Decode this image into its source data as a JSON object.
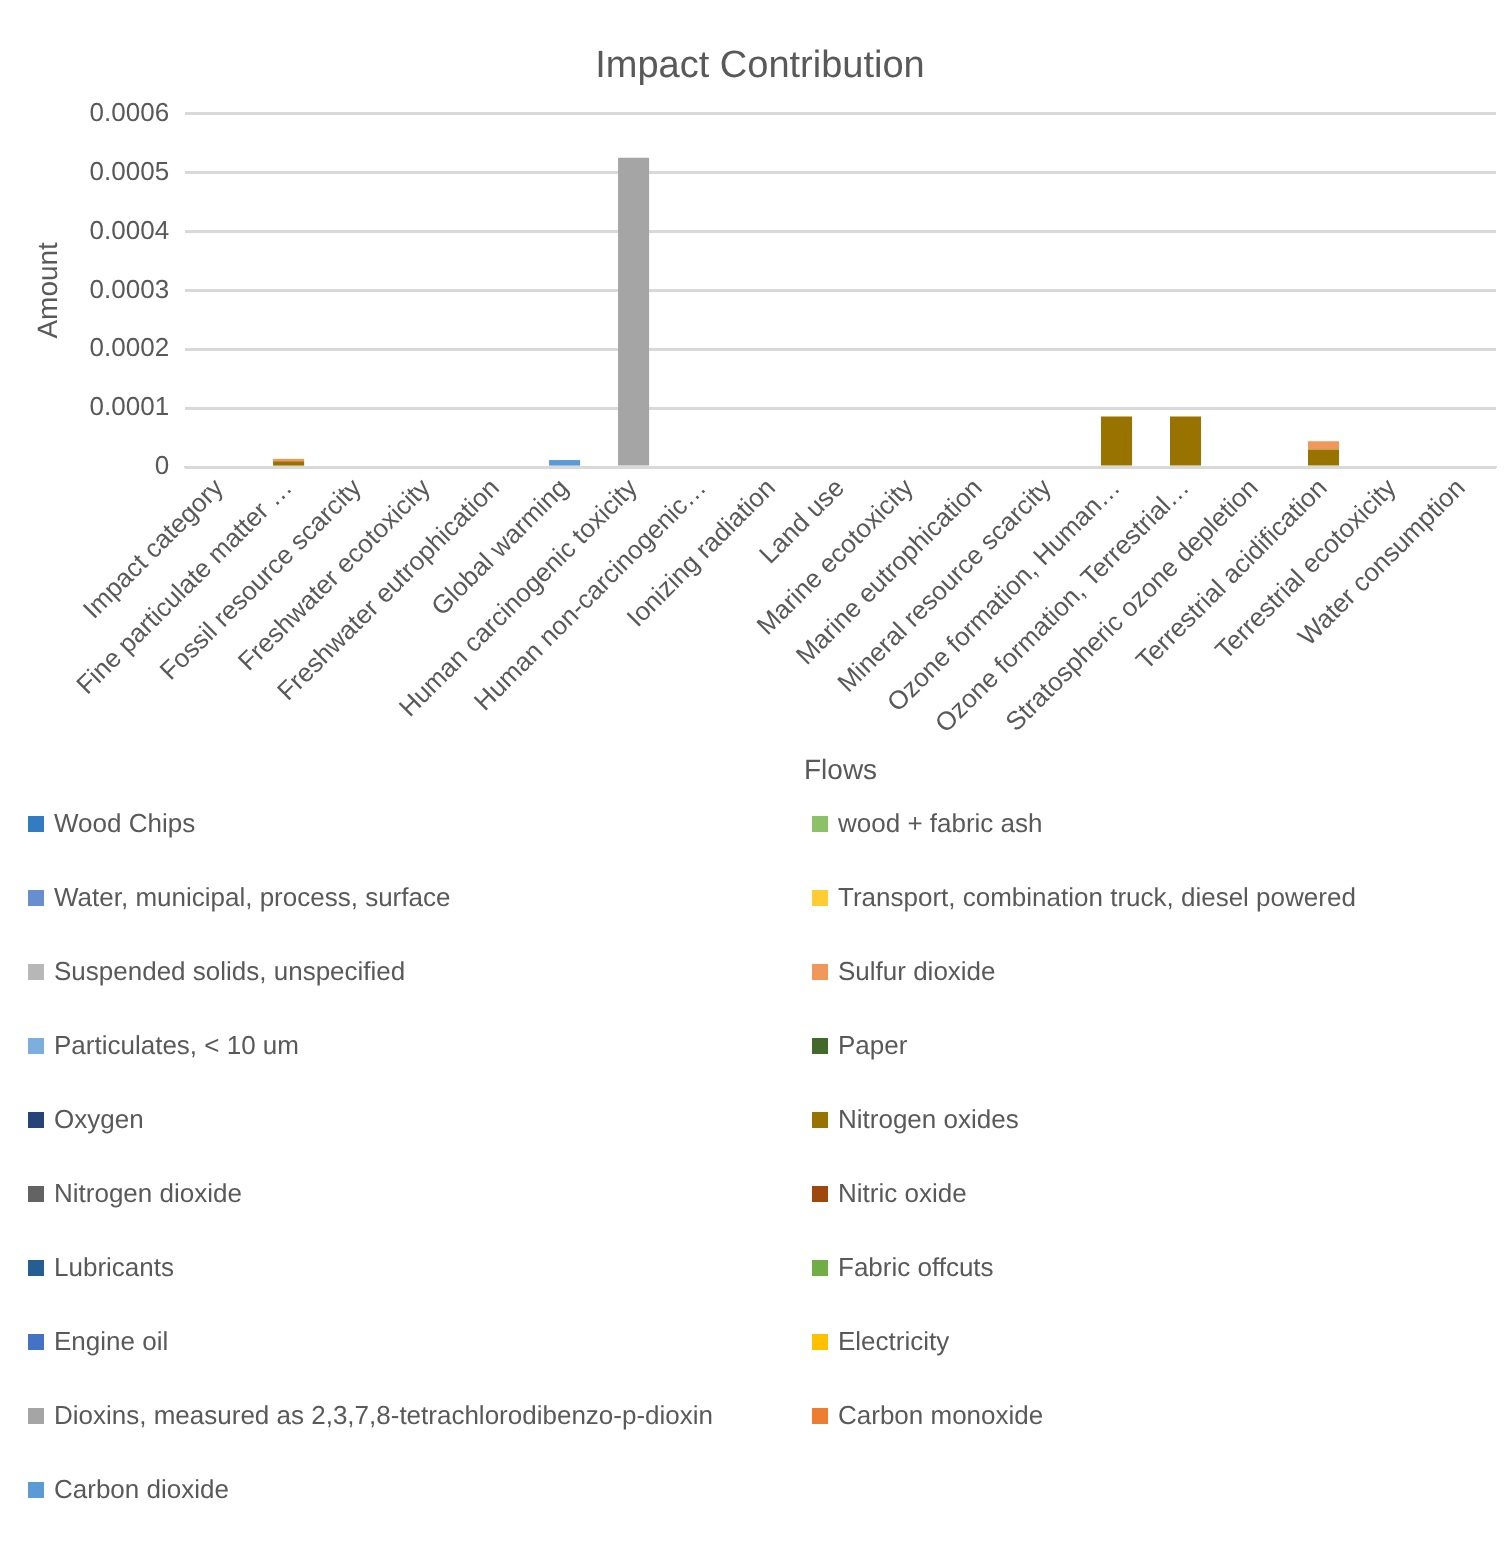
{
  "chart_data": {
    "type": "bar",
    "title": "Impact Contribution",
    "xlabel": "Flows",
    "ylabel": "Amount",
    "stacked": true,
    "grid": "y",
    "legend": "bottom",
    "categories": [
      "Impact category",
      "Fine particulate matter …",
      "Fossil resource scarcity",
      "Freshwater ecotoxicity",
      "Freshwater eutrophication",
      "Global warming",
      "Human carcinogenic toxicity",
      "Human non-carcinogenic…",
      "Ionizing radiation",
      "Land use",
      "Marine ecotoxicity",
      "Marine eutrophication",
      "Mineral resource scarcity",
      "Ozone formation, Human…",
      "Ozone formation, Terrestrial…",
      "Stratospheric ozone depletion",
      "Terrestrial acidification",
      "Terrestrial ecotoxicity",
      "Water consumption"
    ],
    "ylim": [
      0,
      0.0006
    ],
    "yticks": [
      0,
      0.0001,
      0.0002,
      0.0003,
      0.0004,
      0.0005,
      0.0006
    ],
    "series": [
      {
        "name": "Carbon dioxide",
        "color": "#5b9bd5",
        "values": [
          0,
          0,
          0,
          0,
          0,
          1.2e-05,
          0,
          0,
          0,
          0,
          0,
          0,
          0,
          0,
          0,
          0,
          0,
          0,
          0
        ]
      },
      {
        "name": "Carbon monoxide",
        "color": "#ed7d31",
        "values": [
          0,
          0,
          0,
          0,
          0,
          0,
          0,
          0,
          0,
          0,
          0,
          0,
          0,
          0,
          0,
          0,
          0,
          0,
          0
        ]
      },
      {
        "name": "Dioxins, measured as 2,3,7,8-tetrachlorodibenzo-p-dioxin",
        "color": "#a5a5a5",
        "values": [
          0,
          0,
          0,
          0,
          0,
          0,
          0.000525,
          0,
          0,
          0,
          0,
          0,
          0,
          0,
          0,
          0,
          0,
          0,
          0
        ]
      },
      {
        "name": "Electricity",
        "color": "#ffc000",
        "values": [
          0,
          0,
          0,
          0,
          0,
          0,
          0,
          0,
          0,
          0,
          0,
          0,
          0,
          0,
          0,
          0,
          0,
          0,
          0
        ]
      },
      {
        "name": "Engine oil",
        "color": "#4472c4",
        "values": [
          0,
          0,
          0,
          0,
          0,
          0,
          0,
          0,
          0,
          0,
          0,
          0,
          0,
          0,
          0,
          0,
          0,
          0,
          0
        ]
      },
      {
        "name": "Fabric offcuts",
        "color": "#70ad47",
        "values": [
          0,
          0,
          0,
          0,
          0,
          0,
          0,
          0,
          0,
          0,
          0,
          0,
          0,
          0,
          0,
          0,
          0,
          0,
          0
        ]
      },
      {
        "name": "Lubricants",
        "color": "#255e91",
        "values": [
          0,
          0,
          0,
          0,
          0,
          0,
          0,
          0,
          0,
          0,
          0,
          0,
          0,
          0,
          0,
          0,
          0,
          0,
          0
        ]
      },
      {
        "name": "Nitric oxide",
        "color": "#9e480e",
        "values": [
          0,
          0,
          0,
          0,
          0,
          0,
          0,
          0,
          0,
          0,
          0,
          0,
          0,
          0,
          0,
          0,
          0,
          0,
          0
        ]
      },
      {
        "name": "Nitrogen dioxide",
        "color": "#636363",
        "values": [
          0,
          0,
          0,
          0,
          0,
          0,
          0,
          0,
          0,
          0,
          0,
          0,
          0,
          0,
          0,
          0,
          0,
          0,
          0
        ]
      },
      {
        "name": "Nitrogen oxides",
        "color": "#997300",
        "values": [
          0,
          1e-05,
          0,
          0,
          0,
          0,
          0,
          0,
          0,
          0,
          0,
          0,
          0,
          8.6e-05,
          8.6e-05,
          0,
          3e-05,
          0,
          0
        ]
      },
      {
        "name": "Oxygen",
        "color": "#264478",
        "values": [
          0,
          0,
          0,
          0,
          0,
          0,
          0,
          0,
          0,
          0,
          0,
          0,
          0,
          0,
          0,
          0,
          0,
          0,
          0
        ]
      },
      {
        "name": "Paper",
        "color": "#43682b",
        "values": [
          0,
          0,
          0,
          0,
          0,
          0,
          0,
          0,
          0,
          0,
          0,
          0,
          0,
          0,
          0,
          0,
          0,
          0,
          0
        ]
      },
      {
        "name": "Particulates, < 10 um",
        "color": "#7cafdd",
        "values": [
          0,
          0,
          0,
          0,
          0,
          0,
          0,
          0,
          0,
          0,
          0,
          0,
          0,
          0,
          0,
          0,
          0,
          0,
          0
        ]
      },
      {
        "name": "Sulfur dioxide",
        "color": "#f1975a",
        "values": [
          0,
          4e-06,
          0,
          0,
          0,
          0,
          0,
          0,
          0,
          0,
          0,
          0,
          0,
          0,
          0,
          0,
          1.4e-05,
          0,
          0
        ]
      },
      {
        "name": "Suspended solids, unspecified",
        "color": "#b7b7b7",
        "values": [
          0,
          0,
          0,
          0,
          0,
          0,
          0,
          0,
          0,
          0,
          0,
          0,
          0,
          0,
          0,
          0,
          0,
          0,
          0
        ]
      },
      {
        "name": "Transport, combination truck, diesel powered",
        "color": "#ffcd33",
        "values": [
          0,
          0,
          0,
          0,
          0,
          0,
          0,
          0,
          0,
          0,
          0,
          0,
          0,
          0,
          0,
          0,
          0,
          0,
          0
        ]
      },
      {
        "name": "Water, municipal, process, surface",
        "color": "#698ed0",
        "values": [
          0,
          0,
          0,
          0,
          0,
          0,
          0,
          0,
          0,
          0,
          0,
          0,
          0,
          0,
          0,
          0,
          0,
          0,
          0
        ]
      },
      {
        "name": "wood + fabric  ash",
        "color": "#8cc168",
        "values": [
          0,
          0,
          0,
          0,
          0,
          0,
          0,
          0,
          0,
          0,
          0,
          0,
          0,
          0,
          0,
          0,
          0,
          0,
          0
        ]
      },
      {
        "name": "Wood Chips",
        "color": "#327dc2",
        "values": [
          0,
          0,
          0,
          0,
          0,
          0,
          0,
          0,
          0,
          0,
          0,
          0,
          0,
          0,
          0,
          0,
          0,
          0,
          0
        ]
      }
    ]
  }
}
